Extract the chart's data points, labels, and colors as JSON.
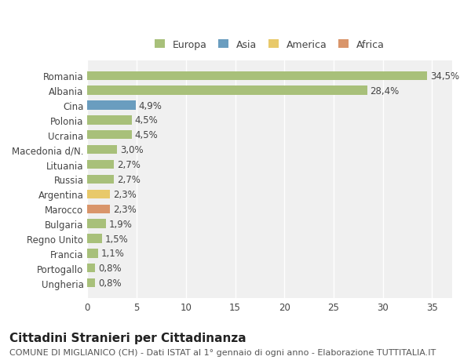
{
  "categories": [
    "Ungheria",
    "Portogallo",
    "Francia",
    "Regno Unito",
    "Bulgaria",
    "Marocco",
    "Argentina",
    "Russia",
    "Lituania",
    "Macedonia d/N.",
    "Ucraina",
    "Polonia",
    "Cina",
    "Albania",
    "Romania"
  ],
  "values": [
    0.8,
    0.8,
    1.1,
    1.5,
    1.9,
    2.3,
    2.3,
    2.7,
    2.7,
    3.0,
    4.5,
    4.5,
    4.9,
    28.4,
    34.5
  ],
  "labels": [
    "0,8%",
    "0,8%",
    "1,1%",
    "1,5%",
    "1,9%",
    "2,3%",
    "2,3%",
    "2,7%",
    "2,7%",
    "3,0%",
    "4,5%",
    "4,5%",
    "4,9%",
    "28,4%",
    "34,5%"
  ],
  "colors": [
    "#a8c07a",
    "#a8c07a",
    "#a8c07a",
    "#a8c07a",
    "#a8c07a",
    "#d9956a",
    "#e8c96a",
    "#a8c07a",
    "#a8c07a",
    "#a8c07a",
    "#a8c07a",
    "#a8c07a",
    "#6a9dbf",
    "#a8c07a",
    "#a8c07a"
  ],
  "legend_labels": [
    "Europa",
    "Asia",
    "America",
    "Africa"
  ],
  "legend_colors": [
    "#a8c07a",
    "#6a9dbf",
    "#e8c96a",
    "#d9956a"
  ],
  "title": "Cittadini Stranieri per Cittadinanza",
  "subtitle": "COMUNE DI MIGLIANICO (CH) - Dati ISTAT al 1° gennaio di ogni anno - Elaborazione TUTTITALIA.IT",
  "xlim": [
    0,
    37
  ],
  "xticks": [
    0,
    5,
    10,
    15,
    20,
    25,
    30,
    35
  ],
  "bg_color": "#ffffff",
  "plot_bg_color": "#f0f0f0",
  "grid_color": "#ffffff",
  "bar_height": 0.6,
  "title_fontsize": 11,
  "subtitle_fontsize": 8,
  "tick_fontsize": 8.5,
  "label_fontsize": 8.5,
  "legend_fontsize": 9
}
